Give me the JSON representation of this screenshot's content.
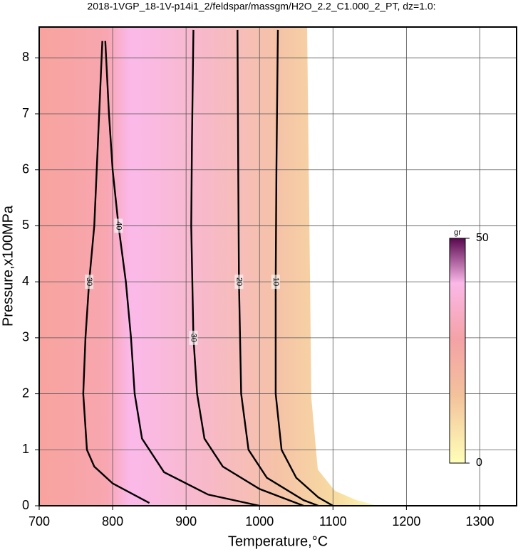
{
  "chart_data": {
    "type": "contour",
    "title": "2018-1VGP_18-1V-p14i1_2/feldspar/massgm/H2O_2.2_C1.000_2_PT, dz=1.0:",
    "x_label": "Temperature,°C",
    "y_label": "Pressure,x100MPa",
    "xlim": [
      700,
      1350
    ],
    "ylim": [
      0,
      8.55
    ],
    "xticks": [
      700,
      800,
      900,
      1000,
      1100,
      1200,
      1300
    ],
    "yticks": [
      0,
      1,
      2,
      3,
      4,
      5,
      6,
      7,
      8
    ],
    "grid": true,
    "contours": [
      {
        "level": 10,
        "x": [
          1025,
          1023,
          1022,
          1022,
          1030,
          1050,
          1080,
          1100
        ],
        "y": [
          8.5,
          6,
          4,
          2,
          1,
          0.5,
          0.15,
          0
        ]
      },
      {
        "level": 20,
        "x": [
          970,
          971,
          972,
          975,
          985,
          1010,
          1060,
          1080
        ],
        "y": [
          8.5,
          6,
          4,
          2,
          1,
          0.5,
          0.1,
          0
        ]
      },
      {
        "level": 30,
        "x": [
          910,
          908,
          907,
          910,
          915,
          925,
          950,
          1000,
          1060
        ],
        "y": [
          8.5,
          6.5,
          5,
          3,
          2,
          1.2,
          0.7,
          0.3,
          0
        ]
      },
      {
        "level": 40,
        "x": [
          790,
          795,
          800,
          808,
          818,
          825,
          830,
          840,
          870,
          930,
          1000
        ],
        "y": [
          8.3,
          7,
          6,
          5,
          4,
          3,
          2,
          1.2,
          0.6,
          0.2,
          0
        ]
      },
      {
        "level": 30,
        "x": [
          786,
          780,
          775,
          768,
          763,
          760,
          765,
          775,
          800,
          850
        ],
        "y": [
          8.3,
          6.5,
          5,
          4,
          3,
          2,
          1,
          0.7,
          0.4,
          0.05
        ]
      }
    ],
    "colorbar": {
      "label": "gr",
      "lim": [
        0,
        50
      ],
      "ticks": [
        0,
        50
      ]
    }
  }
}
